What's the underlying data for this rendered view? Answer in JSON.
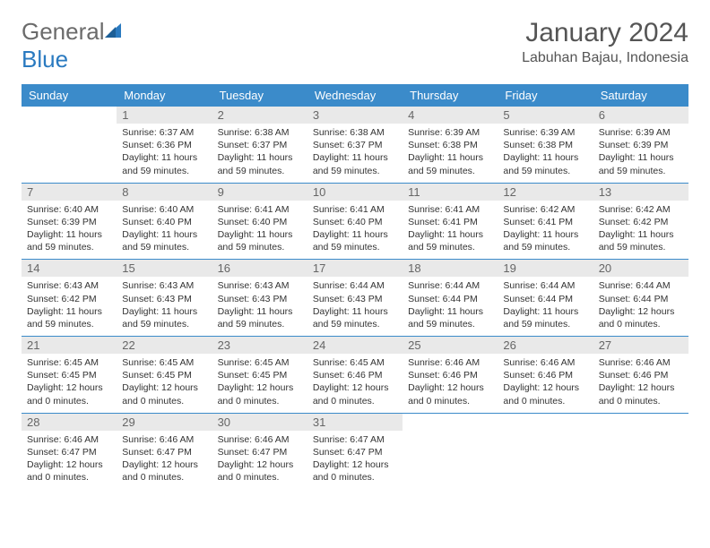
{
  "brand": {
    "part1": "General",
    "part2": "Blue"
  },
  "title": "January 2024",
  "location": "Labuhan Bajau, Indonesia",
  "colors": {
    "header_bg": "#3b8bca",
    "header_text": "#ffffff",
    "daynum_bg": "#e9e9e9",
    "daynum_text": "#666666",
    "body_text": "#333333",
    "rule": "#3b8bca",
    "logo_gray": "#6b6b6b",
    "logo_blue": "#2a7ac0"
  },
  "weekdays": [
    "Sunday",
    "Monday",
    "Tuesday",
    "Wednesday",
    "Thursday",
    "Friday",
    "Saturday"
  ],
  "layout": {
    "columns": 7,
    "first_weekday_index": 1
  },
  "days": [
    {
      "n": 1,
      "sunrise": "6:37 AM",
      "sunset": "6:36 PM",
      "daylight": "11 hours and 59 minutes."
    },
    {
      "n": 2,
      "sunrise": "6:38 AM",
      "sunset": "6:37 PM",
      "daylight": "11 hours and 59 minutes."
    },
    {
      "n": 3,
      "sunrise": "6:38 AM",
      "sunset": "6:37 PM",
      "daylight": "11 hours and 59 minutes."
    },
    {
      "n": 4,
      "sunrise": "6:39 AM",
      "sunset": "6:38 PM",
      "daylight": "11 hours and 59 minutes."
    },
    {
      "n": 5,
      "sunrise": "6:39 AM",
      "sunset": "6:38 PM",
      "daylight": "11 hours and 59 minutes."
    },
    {
      "n": 6,
      "sunrise": "6:39 AM",
      "sunset": "6:39 PM",
      "daylight": "11 hours and 59 minutes."
    },
    {
      "n": 7,
      "sunrise": "6:40 AM",
      "sunset": "6:39 PM",
      "daylight": "11 hours and 59 minutes."
    },
    {
      "n": 8,
      "sunrise": "6:40 AM",
      "sunset": "6:40 PM",
      "daylight": "11 hours and 59 minutes."
    },
    {
      "n": 9,
      "sunrise": "6:41 AM",
      "sunset": "6:40 PM",
      "daylight": "11 hours and 59 minutes."
    },
    {
      "n": 10,
      "sunrise": "6:41 AM",
      "sunset": "6:40 PM",
      "daylight": "11 hours and 59 minutes."
    },
    {
      "n": 11,
      "sunrise": "6:41 AM",
      "sunset": "6:41 PM",
      "daylight": "11 hours and 59 minutes."
    },
    {
      "n": 12,
      "sunrise": "6:42 AM",
      "sunset": "6:41 PM",
      "daylight": "11 hours and 59 minutes."
    },
    {
      "n": 13,
      "sunrise": "6:42 AM",
      "sunset": "6:42 PM",
      "daylight": "11 hours and 59 minutes."
    },
    {
      "n": 14,
      "sunrise": "6:43 AM",
      "sunset": "6:42 PM",
      "daylight": "11 hours and 59 minutes."
    },
    {
      "n": 15,
      "sunrise": "6:43 AM",
      "sunset": "6:43 PM",
      "daylight": "11 hours and 59 minutes."
    },
    {
      "n": 16,
      "sunrise": "6:43 AM",
      "sunset": "6:43 PM",
      "daylight": "11 hours and 59 minutes."
    },
    {
      "n": 17,
      "sunrise": "6:44 AM",
      "sunset": "6:43 PM",
      "daylight": "11 hours and 59 minutes."
    },
    {
      "n": 18,
      "sunrise": "6:44 AM",
      "sunset": "6:44 PM",
      "daylight": "11 hours and 59 minutes."
    },
    {
      "n": 19,
      "sunrise": "6:44 AM",
      "sunset": "6:44 PM",
      "daylight": "11 hours and 59 minutes."
    },
    {
      "n": 20,
      "sunrise": "6:44 AM",
      "sunset": "6:44 PM",
      "daylight": "12 hours and 0 minutes."
    },
    {
      "n": 21,
      "sunrise": "6:45 AM",
      "sunset": "6:45 PM",
      "daylight": "12 hours and 0 minutes."
    },
    {
      "n": 22,
      "sunrise": "6:45 AM",
      "sunset": "6:45 PM",
      "daylight": "12 hours and 0 minutes."
    },
    {
      "n": 23,
      "sunrise": "6:45 AM",
      "sunset": "6:45 PM",
      "daylight": "12 hours and 0 minutes."
    },
    {
      "n": 24,
      "sunrise": "6:45 AM",
      "sunset": "6:46 PM",
      "daylight": "12 hours and 0 minutes."
    },
    {
      "n": 25,
      "sunrise": "6:46 AM",
      "sunset": "6:46 PM",
      "daylight": "12 hours and 0 minutes."
    },
    {
      "n": 26,
      "sunrise": "6:46 AM",
      "sunset": "6:46 PM",
      "daylight": "12 hours and 0 minutes."
    },
    {
      "n": 27,
      "sunrise": "6:46 AM",
      "sunset": "6:46 PM",
      "daylight": "12 hours and 0 minutes."
    },
    {
      "n": 28,
      "sunrise": "6:46 AM",
      "sunset": "6:47 PM",
      "daylight": "12 hours and 0 minutes."
    },
    {
      "n": 29,
      "sunrise": "6:46 AM",
      "sunset": "6:47 PM",
      "daylight": "12 hours and 0 minutes."
    },
    {
      "n": 30,
      "sunrise": "6:46 AM",
      "sunset": "6:47 PM",
      "daylight": "12 hours and 0 minutes."
    },
    {
      "n": 31,
      "sunrise": "6:47 AM",
      "sunset": "6:47 PM",
      "daylight": "12 hours and 0 minutes."
    }
  ],
  "labels": {
    "sunrise": "Sunrise:",
    "sunset": "Sunset:",
    "daylight": "Daylight:"
  }
}
